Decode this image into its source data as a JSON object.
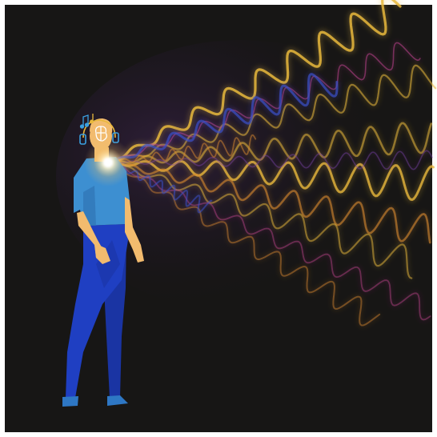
{
  "scene": {
    "subject": "person",
    "background_color": "#171615",
    "frame_color": "#ffffff"
  },
  "person": {
    "skin_color": "#f2bb6e",
    "hair_color": "#f2bb6e",
    "shirt_color": "#3d8fd1",
    "shirt_shadow_color": "#2f74b5",
    "pants_color": "#1f3fc2",
    "pants_shadow_color": "#1a34a3",
    "shoe_color": "#2e77c4"
  },
  "icons": [
    "music-note-icon",
    "brain-icon",
    "headphones-icon"
  ],
  "palette": {
    "wave_gold": "#e8b83c",
    "wave_orange": "#d98a2e",
    "wave_blue": "#3a50c8",
    "wave_magenta": "#c0438f",
    "wave_purple": "#7a3fa8",
    "glow_white": "#ffffff"
  }
}
